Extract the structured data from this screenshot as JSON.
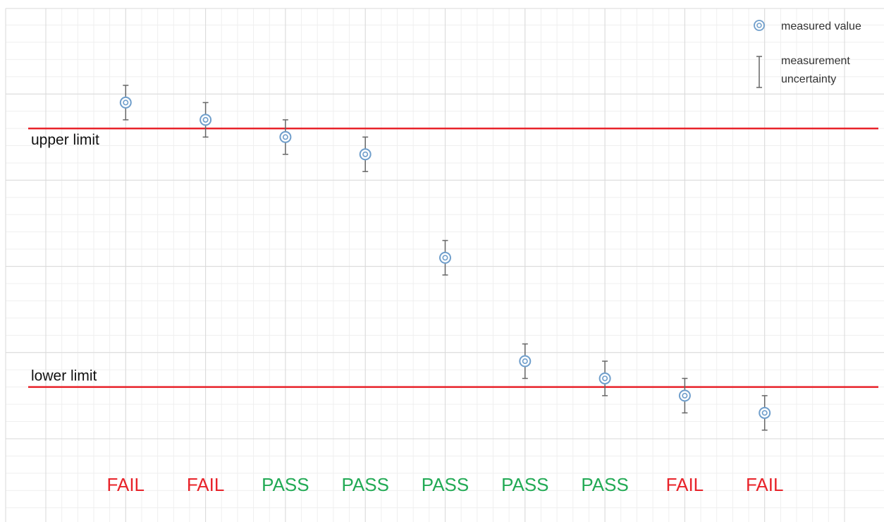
{
  "chart_data": {
    "type": "scatter",
    "title": "",
    "xlabel": "",
    "ylabel": "",
    "grid": true,
    "legend_position": "top-right",
    "y_range": [
      0,
      5
    ],
    "x_range": [
      0,
      10
    ],
    "points": [
      {
        "x": 1,
        "y": 3.9,
        "uncertainty": 0.2,
        "result": "FAIL"
      },
      {
        "x": 2,
        "y": 3.7,
        "uncertainty": 0.2,
        "result": "FAIL"
      },
      {
        "x": 3,
        "y": 3.5,
        "uncertainty": 0.2,
        "result": "PASS"
      },
      {
        "x": 4,
        "y": 3.3,
        "uncertainty": 0.2,
        "result": "PASS"
      },
      {
        "x": 5,
        "y": 2.1,
        "uncertainty": 0.2,
        "result": "PASS"
      },
      {
        "x": 6,
        "y": 0.9,
        "uncertainty": 0.2,
        "result": "PASS"
      },
      {
        "x": 7,
        "y": 0.7,
        "uncertainty": 0.2,
        "result": "PASS"
      },
      {
        "x": 8,
        "y": 0.5,
        "uncertainty": 0.2,
        "result": "FAIL"
      },
      {
        "x": 9,
        "y": 0.3,
        "uncertainty": 0.2,
        "result": "FAIL"
      }
    ],
    "limits": [
      {
        "name": "upper limit",
        "y": 3.6,
        "color": "#e8232a"
      },
      {
        "name": "lower limit",
        "y": 0.6,
        "color": "#e8232a"
      }
    ],
    "legend": [
      {
        "label": "measured value",
        "symbol": "circle-marker-icon"
      },
      {
        "label_lines": [
          "measurement",
          "uncertainty"
        ],
        "symbol": "error-bar-icon"
      }
    ],
    "colors": {
      "marker": "#6f9ecb",
      "error_bar": "#666666",
      "pass": "#22aa55",
      "fail": "#e8232a",
      "grid_major": "#d9d9d9",
      "grid_minor": "#efefef"
    }
  }
}
